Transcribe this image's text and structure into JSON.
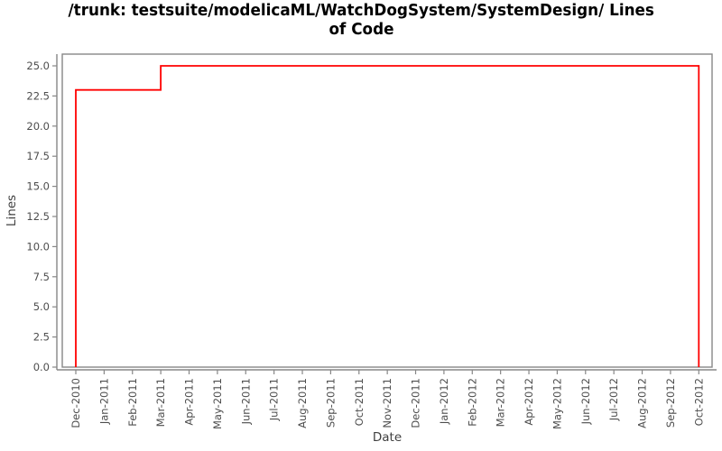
{
  "title": {
    "line1": "/trunk: testsuite/modelicaML/WatchDogSystem/SystemDesign/ Lines",
    "line2": "of Code",
    "full": "/trunk: testsuite/modelicaML/WatchDogSystem/SystemDesign/ Lines of Code"
  },
  "colors": {
    "line": "#ff0000",
    "axis": "#878787",
    "plot_border": "#878787",
    "tick_text": "#4d4d4d",
    "axis_label_text": "#404040",
    "title_text": "#000000",
    "background": "#ffffff"
  },
  "chart_data": {
    "type": "line",
    "step": true,
    "title": "/trunk: testsuite/modelicaML/WatchDogSystem/SystemDesign/ Lines of Code",
    "xlabel": "Date",
    "ylabel": "Lines",
    "ylim": [
      0.0,
      25.0
    ],
    "y_ticks": [
      0.0,
      2.5,
      5.0,
      7.5,
      10.0,
      12.5,
      15.0,
      17.5,
      20.0,
      22.5,
      25.0
    ],
    "x_tick_labels": [
      "Dec-2010",
      "Jan-2011",
      "Feb-2011",
      "Mar-2011",
      "Apr-2011",
      "May-2011",
      "Jun-2011",
      "Jul-2011",
      "Aug-2011",
      "Sep-2011",
      "Oct-2011",
      "Nov-2011",
      "Dec-2011",
      "Jan-2012",
      "Feb-2012",
      "Mar-2012",
      "Apr-2012",
      "May-2012",
      "Jun-2012",
      "Jul-2012",
      "Aug-2012",
      "Sep-2012",
      "Oct-2012"
    ],
    "grid": false,
    "legend": false,
    "series": [
      {
        "name": "Lines of Code",
        "color": "#ff0000",
        "points": [
          {
            "x": "Dec-2010",
            "y": 0
          },
          {
            "x": "Dec-2010",
            "y": 23
          },
          {
            "x": "Mar-2011",
            "y": 23
          },
          {
            "x": "Mar-2011",
            "y": 25
          },
          {
            "x": "Oct-2012",
            "y": 25
          },
          {
            "x": "Oct-2012",
            "y": 0
          }
        ]
      }
    ]
  }
}
